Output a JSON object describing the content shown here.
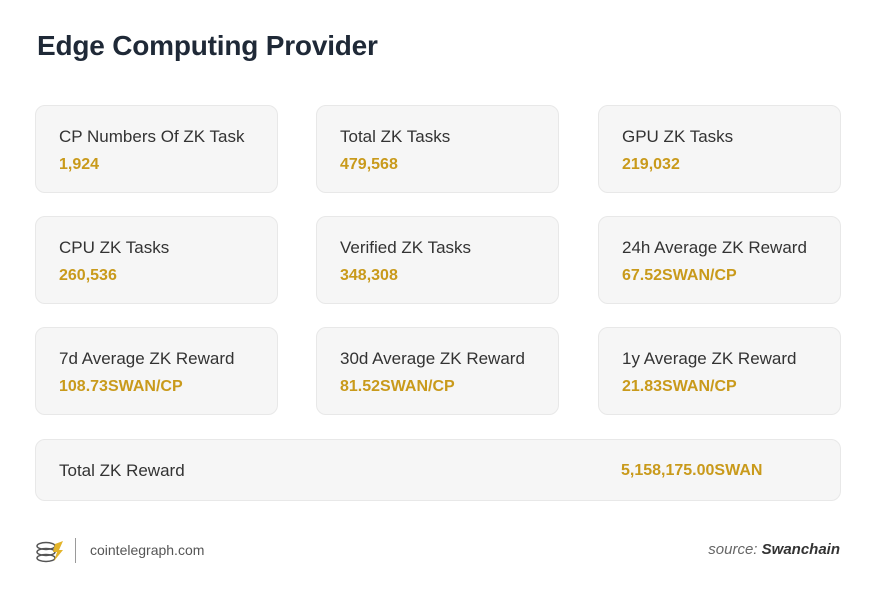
{
  "title": "Edge Computing Provider",
  "cards": [
    {
      "label": "CP Numbers Of ZK Task",
      "value": "1,924"
    },
    {
      "label": "Total ZK Tasks",
      "value": "479,568"
    },
    {
      "label": "GPU ZK Tasks",
      "value": "219,032"
    },
    {
      "label": "CPU ZK Tasks",
      "value": "260,536"
    },
    {
      "label": "Verified ZK Tasks",
      "value": "348,308"
    },
    {
      "label": "24h Average ZK Reward",
      "value": "67.52SWAN/CP"
    },
    {
      "label": "7d Average ZK Reward",
      "value": "108.73SWAN/CP"
    },
    {
      "label": "30d Average ZK Reward",
      "value": "81.52SWAN/CP"
    },
    {
      "label": "1y Average ZK Reward",
      "value": "21.83SWAN/CP"
    }
  ],
  "total": {
    "label": "Total ZK Reward",
    "value": "5,158,175.00SWAN"
  },
  "footer": {
    "logo_icon": "cointelegraph-coins-icon",
    "site": "cointelegraph.com",
    "source_prefix": "source:",
    "source_name": "Swanchain"
  },
  "colors": {
    "accent": "#c99a1b",
    "card_bg": "#f6f6f6",
    "title": "#1f2937"
  }
}
